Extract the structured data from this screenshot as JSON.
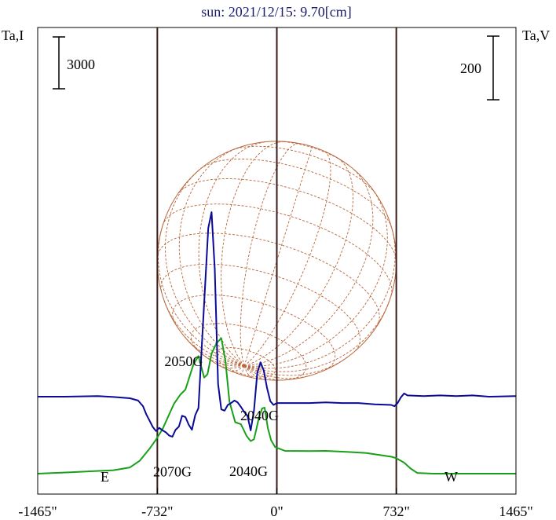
{
  "chart_data": {
    "type": "line",
    "title": "sun: 2021/12/15: 9.70[cm]",
    "left_axis_label": "Ta,I",
    "right_axis_label": "Ta,V",
    "left_scale_bar": "3000",
    "right_scale_bar": "200",
    "x_ticks": [
      {
        "value": -1465,
        "label": "-1465\""
      },
      {
        "value": -732,
        "label": "-732\""
      },
      {
        "value": 0,
        "label": "0\""
      },
      {
        "value": 732,
        "label": "732\""
      },
      {
        "value": 1465,
        "label": "1465\""
      }
    ],
    "xlim": [
      -1465,
      1465
    ],
    "disk_edges": [
      -732,
      732
    ],
    "limb_labels": {
      "east": "E",
      "west": "W"
    },
    "colors": {
      "title": "#1a1a6e",
      "intensity": "#18a018",
      "polarization": "#0a0a96",
      "frame": "#000000",
      "vline": "#3a1a1a",
      "grid": "#b8663a"
    },
    "annotations": [
      {
        "text": "2050G",
        "x": -571,
        "y": 6550
      },
      {
        "text": "2040G",
        "x": -106,
        "y": 3380
      },
      {
        "text": "2070G",
        "x": -640,
        "y": 120
      },
      {
        "text": "2040G",
        "x": -173,
        "y": 140
      }
    ],
    "series": [
      {
        "name": "Ta,I",
        "axis": "left",
        "x": [
          -1465,
          -1265,
          -1000,
          -900,
          -840,
          -780,
          -745,
          -700,
          -630,
          -590,
          -560,
          -510,
          -480,
          -445,
          -425,
          -400,
          -370,
          -340,
          -315,
          -290,
          -255,
          -220,
          -185,
          -160,
          -140,
          -125,
          -110,
          -90,
          -75,
          -55,
          -35,
          -10,
          50,
          200,
          300,
          450,
          550,
          650,
          700,
          730,
          780,
          820,
          860,
          960,
          1100,
          1465
        ],
        "y": [
          0,
          80,
          200,
          360,
          750,
          1450,
          1920,
          2600,
          4080,
          4620,
          4900,
          6400,
          6850,
          5600,
          5800,
          7000,
          7600,
          7900,
          6600,
          4200,
          3000,
          2880,
          2200,
          1900,
          2000,
          2600,
          3250,
          3800,
          3850,
          2650,
          1950,
          1550,
          1330,
          1320,
          1330,
          1260,
          1200,
          1060,
          990,
          910,
          640,
          300,
          40,
          0,
          0,
          0
        ]
      },
      {
        "name": "Ta,V",
        "axis": "right",
        "x": [
          -1465,
          -1300,
          -1100,
          -1000,
          -900,
          -850,
          -820,
          -800,
          -780,
          -760,
          -740,
          -720,
          -700,
          -680,
          -660,
          -640,
          -620,
          -600,
          -580,
          -560,
          -540,
          -520,
          -500,
          -480,
          -460,
          -440,
          -420,
          -400,
          -380,
          -360,
          -340,
          -320,
          -300,
          -280,
          -260,
          -240,
          -220,
          -200,
          -180,
          -160,
          -140,
          -120,
          -100,
          -80,
          -60,
          -40,
          -20,
          0,
          100,
          200,
          300,
          400,
          500,
          600,
          700,
          720,
          740,
          760,
          780,
          800,
          900,
          1000,
          1100,
          1200,
          1300,
          1465
        ],
        "y": [
          0,
          0,
          2,
          -1,
          -5,
          -12,
          -30,
          -55,
          -75,
          -95,
          -108,
          -98,
          -106,
          -112,
          -122,
          -126,
          -104,
          -94,
          -60,
          -64,
          -88,
          -104,
          -58,
          -36,
          156,
          340,
          530,
          580,
          400,
          40,
          -40,
          -44,
          -26,
          -20,
          -12,
          -18,
          -32,
          -48,
          -60,
          -106,
          -44,
          74,
          108,
          82,
          28,
          -14,
          -26,
          -20,
          -20,
          -20,
          -18,
          -20,
          -20,
          -24,
          -26,
          -30,
          -20,
          -2,
          10,
          4,
          2,
          4,
          2,
          4,
          0,
          2
        ]
      }
    ]
  }
}
